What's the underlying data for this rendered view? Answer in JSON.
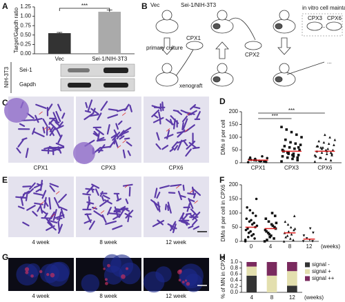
{
  "panel_labels": [
    "A",
    "B",
    "C",
    "D",
    "E",
    "F",
    "G",
    "H"
  ],
  "blot": {
    "cell_line": "NIH-3T3",
    "bands": [
      "Sei-1",
      "Gapdh"
    ]
  },
  "diagram": {
    "vec": "Vec",
    "sei": "Sei-1/NIH-3T3",
    "cpx1": "CPX1",
    "primary": "primary culture",
    "xenograft": "xenograft",
    "cpx2": "CPX2",
    "invitro": "in vitro cell maintanence",
    "cpx3": "CPX3",
    "cpx6": "CPX6",
    "dots1": "...",
    "dots2": "..."
  },
  "micrographs_C": [
    "CPX1",
    "CPX3",
    "CPX6"
  ],
  "micrographs_E": [
    "4 week",
    "8 week",
    "12 week"
  ],
  "micrographs_G": [
    "4 week",
    "8 week",
    "12 week"
  ],
  "chart_data": [
    {
      "type": "bar",
      "ylabel": "Target/Gapdh ratio",
      "categories": [
        "Vec",
        "Sei-1/NIH-3T3"
      ],
      "values": [
        0.55,
        1.12
      ],
      "errors": [
        0.02,
        0.05
      ],
      "colors": [
        "#333333",
        "#aaaaaa"
      ],
      "ylim": [
        0,
        1.25
      ],
      "yticks": [
        {
          "value": 0,
          "label": "0.00"
        },
        0.25,
        {
          "value": 0.5,
          "label": "0.50"
        },
        0.75,
        {
          "value": 1,
          "label": "1.00"
        },
        1.25
      ],
      "annotations": [
        "***"
      ]
    },
    {
      "type": "scatter",
      "ylabel": "DMs # per cell",
      "categories": [
        "CPX1",
        "CPX3",
        "CPX6"
      ],
      "markers": [
        "circle",
        "square",
        "triangle"
      ],
      "mean_color": "#e02020",
      "points": [
        [
          2,
          5,
          8,
          10,
          12,
          4,
          6,
          15,
          20,
          3,
          7,
          9,
          11,
          18,
          25
        ],
        [
          5,
          10,
          15,
          20,
          25,
          30,
          35,
          40,
          45,
          50,
          55,
          60,
          65,
          70,
          75,
          80,
          90,
          100,
          110,
          120,
          130,
          140,
          20,
          30,
          40,
          50,
          60,
          25,
          35,
          45
        ],
        [
          5,
          10,
          15,
          20,
          25,
          30,
          35,
          40,
          45,
          50,
          55,
          60,
          65,
          70,
          75,
          80,
          85,
          90,
          100,
          110,
          20,
          30,
          40,
          50,
          60,
          25,
          35,
          45,
          55,
          65
        ]
      ],
      "means": [
        10,
        45,
        45
      ],
      "ylim": [
        0,
        200
      ],
      "yticks": [
        0,
        50,
        100,
        150,
        200
      ],
      "annotations": [
        "***",
        "***"
      ]
    },
    {
      "type": "scatter",
      "ylabel": "DMs # per cell in CPX6",
      "categories": [
        "0",
        "4",
        "8",
        "12"
      ],
      "xlabel": "(weeks)",
      "markers": [
        "circle",
        "square",
        "triangle",
        "invtriangle"
      ],
      "mean_color": "#e02020",
      "points": [
        [
          0,
          10,
          20,
          30,
          40,
          50,
          60,
          70,
          80,
          90,
          100,
          110,
          120,
          150,
          25,
          35,
          45,
          55,
          65,
          75,
          15,
          5
        ],
        [
          0,
          10,
          20,
          30,
          40,
          50,
          60,
          70,
          80,
          90,
          100,
          25,
          35,
          45,
          55,
          15,
          5,
          65
        ],
        [
          0,
          5,
          10,
          20,
          30,
          40,
          50,
          60,
          70,
          90,
          25,
          35,
          15,
          45
        ],
        [
          0,
          0,
          5,
          10,
          20,
          30,
          45
        ]
      ],
      "means": [
        50,
        45,
        30,
        8
      ],
      "ylim": [
        0,
        200
      ],
      "yticks": [
        0,
        50,
        100,
        150,
        200
      ]
    },
    {
      "type": "stacked_bar",
      "ylabel": "% of MN in CPX6",
      "categories": [
        "4",
        "8",
        "12"
      ],
      "xlabel": "(weeks)",
      "series": [
        {
          "name": "signal -",
          "color": "#333333",
          "values": [
            0.55,
            0,
            0.22
          ]
        },
        {
          "name": "signal +",
          "color": "#e3dfae",
          "values": [
            0.3,
            0.55,
            0.48
          ]
        },
        {
          "name": "signal ++",
          "color": "#7a2a5e",
          "values": [
            0.15,
            0.45,
            0.3
          ]
        }
      ],
      "ylim": [
        0,
        1
      ],
      "yticks": [
        {
          "value": 0,
          "label": "0.0"
        },
        0.2,
        0.4,
        0.6,
        0.8,
        {
          "value": 1,
          "label": "1.0"
        }
      ]
    }
  ]
}
